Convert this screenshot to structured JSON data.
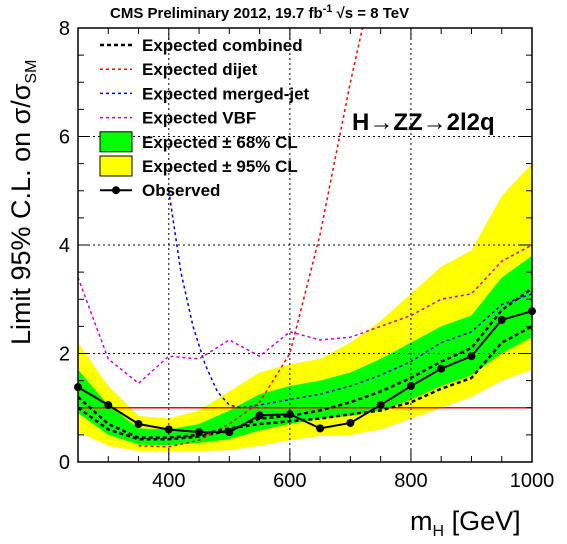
{
  "chart_data": {
    "type": "line",
    "title": "CMS Preliminary 2012, 19.7 fb-1 √s = 8 TeV",
    "title_parts": {
      "main": "CMS Preliminary 2012, 19.7 fb",
      "exp": "-1",
      "tail": " √s = 8 TeV"
    },
    "process_label": "H→ZZ→2l2q",
    "xlabel": {
      "main": "m",
      "sub": "H",
      "tail": " [GeV]"
    },
    "ylabel": {
      "main": "Limit 95% C.L. on σ/σ",
      "sub": "SM"
    },
    "xlim": [
      250,
      1000
    ],
    "ylim": [
      0,
      8
    ],
    "x_ticks": [
      400,
      600,
      800,
      1000
    ],
    "y_ticks": [
      0,
      2,
      4,
      6,
      8
    ],
    "grid": true,
    "legend_position": "top-left",
    "reference_line": {
      "y": 1,
      "color": "#ff0000"
    },
    "legend": [
      {
        "key": "exp_combined",
        "label": "Expected combined"
      },
      {
        "key": "exp_dijet",
        "label": "Expected dijet"
      },
      {
        "key": "exp_merged",
        "label": "Expected merged-jet"
      },
      {
        "key": "exp_vbf",
        "label": "Expected VBF"
      },
      {
        "key": "band68",
        "label": "Expected ± 68% CL"
      },
      {
        "key": "band95",
        "label": "Expected ± 95% CL"
      },
      {
        "key": "observed",
        "label": "Observed"
      }
    ],
    "colors": {
      "exp_combined": "#000000",
      "exp_dijet": "#ff0000",
      "exp_merged": "#0000cc",
      "exp_vbf": "#cc00cc",
      "band68": "#00ff00",
      "band95": "#ffff00",
      "observed": "#000000"
    },
    "band95": {
      "x": [
        250,
        300,
        350,
        400,
        450,
        500,
        550,
        600,
        650,
        700,
        750,
        800,
        850,
        900,
        950,
        1000
      ],
      "low": [
        0.55,
        0.3,
        0.2,
        0.19,
        0.2,
        0.22,
        0.3,
        0.4,
        0.48,
        0.5,
        0.6,
        0.8,
        1.0,
        1.2,
        1.5,
        1.7
      ],
      "high": [
        2.2,
        1.4,
        0.85,
        0.8,
        0.95,
        1.3,
        1.65,
        1.8,
        1.9,
        2.2,
        2.6,
        3.1,
        3.6,
        3.9,
        4.9,
        5.5
      ]
    },
    "band68": {
      "x": [
        250,
        300,
        350,
        400,
        450,
        500,
        550,
        600,
        650,
        700,
        750,
        800,
        850,
        900,
        950,
        1000
      ],
      "low": [
        0.9,
        0.5,
        0.32,
        0.31,
        0.35,
        0.42,
        0.58,
        0.7,
        0.8,
        0.85,
        0.95,
        1.15,
        1.4,
        1.6,
        2.0,
        2.3
      ],
      "high": [
        1.7,
        1.05,
        0.62,
        0.6,
        0.7,
        0.95,
        1.25,
        1.4,
        1.5,
        1.65,
        1.9,
        2.2,
        2.5,
        2.7,
        3.4,
        3.8
      ]
    },
    "series": [
      {
        "key": "exp_combined",
        "x": [
          250,
          300,
          350,
          400,
          450,
          500,
          550,
          600,
          650,
          700,
          750,
          800,
          850,
          900,
          950,
          1000
        ],
        "y": [
          1.0,
          0.6,
          0.42,
          0.42,
          0.47,
          0.58,
          0.8,
          0.85,
          0.95,
          1.1,
          1.3,
          1.55,
          1.85,
          2.1,
          2.8,
          3.2
        ]
      },
      {
        "key": "exp_combined_b",
        "x": [
          250,
          300,
          350,
          400,
          450,
          500,
          550,
          600,
          650,
          700,
          750,
          800,
          850,
          900,
          950,
          1000
        ],
        "y": [
          1.2,
          0.7,
          0.45,
          0.45,
          0.5,
          0.62,
          0.7,
          0.75,
          0.8,
          0.88,
          0.95,
          1.1,
          1.35,
          1.55,
          2.2,
          2.5
        ]
      },
      {
        "key": "exp_dijet",
        "x": [
          350,
          400,
          450,
          500,
          550,
          600,
          650,
          700,
          720
        ],
        "y": [
          0.3,
          0.28,
          0.4,
          0.7,
          1.1,
          2.0,
          4.2,
          7.0,
          8.0
        ]
      },
      {
        "key": "exp_merged",
        "x": [
          400,
          420,
          440,
          460,
          480,
          500,
          520,
          550,
          600,
          650,
          700,
          750,
          800,
          850,
          900,
          950,
          1000
        ],
        "y": [
          5.0,
          3.5,
          2.5,
          1.8,
          1.3,
          1.05,
          1.0,
          1.05,
          1.15,
          1.25,
          1.4,
          1.6,
          1.85,
          2.2,
          2.4,
          2.9,
          3.1
        ]
      },
      {
        "key": "exp_vbf",
        "x": [
          250,
          300,
          350,
          400,
          450,
          500,
          550,
          600,
          650,
          700,
          750,
          800,
          850,
          900,
          950,
          1000
        ],
        "y": [
          3.4,
          1.9,
          1.45,
          1.95,
          1.9,
          2.25,
          1.95,
          2.4,
          2.25,
          2.3,
          2.5,
          2.7,
          3.0,
          3.1,
          3.7,
          4.0
        ]
      }
    ],
    "observed": {
      "x": [
        250,
        300,
        350,
        400,
        450,
        500,
        550,
        600,
        650,
        700,
        750,
        800,
        850,
        900,
        950,
        1000
      ],
      "y": [
        1.38,
        1.05,
        0.7,
        0.6,
        0.55,
        0.55,
        0.86,
        0.88,
        0.62,
        0.72,
        1.05,
        1.4,
        1.72,
        1.95,
        2.62,
        2.78
      ]
    }
  }
}
